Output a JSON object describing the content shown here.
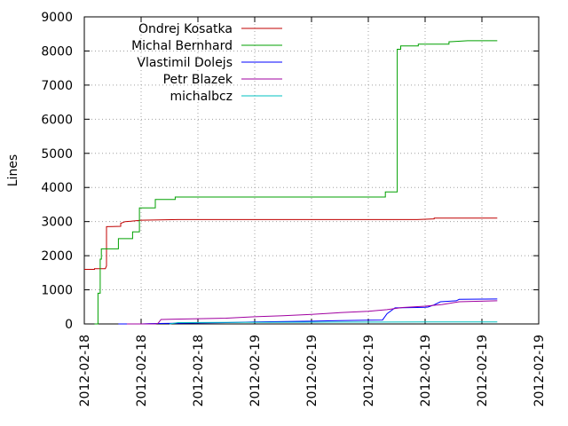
{
  "chart_data": {
    "type": "line",
    "title": "",
    "xlabel": "",
    "ylabel": "Lines",
    "ylim": [
      0,
      9000
    ],
    "yticks": [
      0,
      1000,
      2000,
      3000,
      4000,
      5000,
      6000,
      7000,
      8000,
      9000
    ],
    "xlim": [
      0,
      8
    ],
    "xtick_labels": [
      "2012-02-18",
      "2012-02-18",
      "2012-02-18",
      "2012-02-19",
      "2012-02-19",
      "2012-02-19",
      "2012-02-19",
      "2012-02-19",
      "2012-02-19"
    ],
    "grid": true,
    "legend_position": "top-left",
    "series": [
      {
        "name": "Ondrej Kosatka",
        "color": "#c00000",
        "x": [
          0,
          0.18,
          0.18,
          0.37,
          0.39,
          0.39,
          0.64,
          0.64,
          0.72,
          0.82,
          1.0,
          1.65,
          4.0,
          5.86,
          6.16,
          6.16,
          7.27
        ],
        "y": [
          1600,
          1600,
          1620,
          1620,
          1700,
          2850,
          2860,
          2950,
          3000,
          3010,
          3040,
          3060,
          3060,
          3060,
          3080,
          3100,
          3100
        ]
      },
      {
        "name": "Michal Bernhard",
        "color": "#00a000",
        "x": [
          0.18,
          0.24,
          0.24,
          0.28,
          0.28,
          0.3,
          0.3,
          0.6,
          0.6,
          0.85,
          0.85,
          0.97,
          0.97,
          1.25,
          1.25,
          1.6,
          1.6,
          3.5,
          5.3,
          5.3,
          5.51,
          5.51,
          5.57,
          5.57,
          5.88,
          5.88,
          6.42,
          6.42,
          6.75,
          7.27
        ],
        "y": [
          0,
          0,
          900,
          900,
          1900,
          1900,
          2200,
          2200,
          2500,
          2500,
          2700,
          2700,
          3400,
          3400,
          3650,
          3650,
          3720,
          3720,
          3720,
          3870,
          3870,
          8050,
          8050,
          8150,
          8150,
          8200,
          8200,
          8270,
          8300,
          8300
        ]
      },
      {
        "name": "Vlastimil Dolejs",
        "color": "#0000ff",
        "x": [
          0.6,
          1.0,
          1.15,
          1.6,
          2.5,
          3.0,
          4.0,
          4.5,
          5.0,
          5.25,
          5.33,
          5.47,
          5.86,
          6.0,
          6.05,
          6.16,
          6.27,
          6.55,
          6.6,
          7.27
        ],
        "y": [
          0,
          0,
          10,
          20,
          40,
          60,
          80,
          100,
          110,
          115,
          300,
          470,
          480,
          490,
          495,
          560,
          650,
          680,
          720,
          730
        ]
      },
      {
        "name": "Petr Blazek",
        "color": "#a000a0",
        "x": [
          0.75,
          1.25,
          1.3,
          1.35,
          1.6,
          2.5,
          3.0,
          3.5,
          4.0,
          4.5,
          5.0,
          5.33,
          5.6,
          6.0,
          6.3,
          6.6,
          7.27
        ],
        "y": [
          0,
          0,
          20,
          130,
          140,
          170,
          210,
          240,
          280,
          330,
          370,
          420,
          480,
          520,
          570,
          650,
          680
        ]
      },
      {
        "name": "michalbcz",
        "color": "#00c0c0",
        "x": [
          1.5,
          1.65,
          2.5,
          3.5,
          4.5,
          5.3,
          6.0,
          7.27
        ],
        "y": [
          0,
          40,
          45,
          50,
          55,
          55,
          60,
          60
        ]
      }
    ]
  }
}
